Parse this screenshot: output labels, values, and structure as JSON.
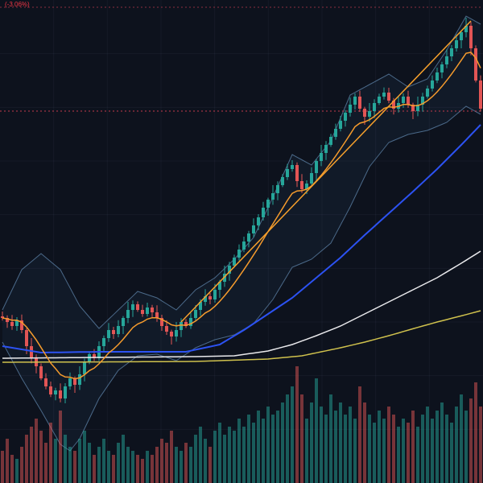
{
  "chart_data": {
    "type": "candlestick",
    "title": "",
    "xlabel": "",
    "ylabel": "",
    "ylim": [
      90,
      240
    ],
    "x_count": 100,
    "grid": {
      "v_divisions": 9,
      "h_divisions": 9,
      "visible": true
    },
    "legend": {
      "change_text": "(-3.06%)"
    },
    "closes": [
      141.25,
      140,
      138.75,
      140.5,
      137.5,
      132.5,
      128.75,
      126.25,
      122.5,
      120,
      117.5,
      118.75,
      116.25,
      120,
      122.5,
      120.5,
      123.75,
      127.5,
      130,
      128.75,
      132.5,
      135,
      137.5,
      136.25,
      138.75,
      141.25,
      143.75,
      145.5,
      143.75,
      142.5,
      144.5,
      143,
      141.25,
      138.75,
      137,
      135.5,
      137.5,
      140,
      138.75,
      141.25,
      143.75,
      146.25,
      148,
      147,
      150,
      152.5,
      155,
      157.5,
      160,
      162.5,
      165,
      167.5,
      170,
      172.5,
      175.5,
      178,
      180,
      182.5,
      185,
      187.5,
      188.75,
      183.75,
      181.25,
      183,
      186.25,
      190,
      192.5,
      195,
      197.5,
      200,
      202.5,
      205,
      207.5,
      210,
      206.25,
      203.75,
      205.5,
      208,
      210,
      211.25,
      208.75,
      206.25,
      208,
      210,
      207.5,
      205.5,
      207.5,
      210,
      212.5,
      215,
      217.5,
      220,
      222.5,
      225,
      227.5,
      230,
      232,
      225,
      215,
      206.25
    ],
    "volumes": [
      40,
      55,
      35,
      30,
      45,
      60,
      70,
      80,
      65,
      50,
      75,
      55,
      90,
      60,
      45,
      40,
      55,
      65,
      50,
      35,
      45,
      55,
      40,
      35,
      50,
      60,
      45,
      40,
      35,
      30,
      40,
      35,
      45,
      55,
      50,
      65,
      45,
      40,
      50,
      45,
      60,
      70,
      55,
      45,
      65,
      75,
      60,
      70,
      65,
      80,
      70,
      85,
      75,
      90,
      80,
      95,
      85,
      90,
      100,
      110,
      120,
      145,
      110,
      80,
      100,
      130,
      95,
      85,
      110,
      90,
      100,
      85,
      95,
      80,
      120,
      100,
      85,
      75,
      90,
      80,
      95,
      85,
      70,
      80,
      75,
      90,
      70,
      85,
      95,
      80,
      90,
      100,
      85,
      75,
      95,
      110,
      90,
      105,
      125,
      95
    ],
    "wick_pattern": [
      1.5,
      0.8,
      2.2,
      1.0,
      1.8,
      0.6,
      2.5,
      1.2,
      0.9,
      1.6
    ],
    "overlays": {
      "bollinger": {
        "upper_anchors": [
          [
            0,
            143.75
          ],
          [
            4,
            156.25
          ],
          [
            8,
            161.25
          ],
          [
            12,
            156.25
          ],
          [
            16,
            145
          ],
          [
            20,
            138
          ],
          [
            24,
            143.75
          ],
          [
            28,
            149.5
          ],
          [
            32,
            147.5
          ],
          [
            36,
            143.75
          ],
          [
            40,
            150
          ],
          [
            44,
            153.75
          ],
          [
            48,
            159.5
          ],
          [
            52,
            166.25
          ],
          [
            56,
            178.75
          ],
          [
            60,
            192
          ],
          [
            64,
            188.75
          ],
          [
            68,
            196.25
          ],
          [
            72,
            210.5
          ],
          [
            76,
            213.75
          ],
          [
            80,
            217
          ],
          [
            84,
            213
          ],
          [
            88,
            215.5
          ],
          [
            92,
            224.5
          ],
          [
            96,
            235
          ],
          [
            99,
            232.5
          ]
        ],
        "lower_anchors": [
          [
            0,
            133.75
          ],
          [
            4,
            122.5
          ],
          [
            8,
            112.5
          ],
          [
            12,
            102
          ],
          [
            14,
            100
          ],
          [
            16,
            103.75
          ],
          [
            20,
            116.25
          ],
          [
            24,
            125
          ],
          [
            28,
            129.5
          ],
          [
            32,
            130
          ],
          [
            36,
            128
          ],
          [
            40,
            132
          ],
          [
            44,
            134.5
          ],
          [
            48,
            136
          ],
          [
            52,
            139.5
          ],
          [
            56,
            147
          ],
          [
            60,
            157
          ],
          [
            64,
            159.5
          ],
          [
            68,
            164.5
          ],
          [
            72,
            175.75
          ],
          [
            76,
            188.25
          ],
          [
            80,
            195.75
          ],
          [
            84,
            198.25
          ],
          [
            88,
            199.5
          ],
          [
            92,
            202
          ],
          [
            96,
            207
          ],
          [
            99,
            204.5
          ]
        ]
      },
      "orange_ema": {
        "period": 9
      },
      "ma_blue_anchors": [
        [
          0,
          132.5
        ],
        [
          8,
          130.5
        ],
        [
          20,
          130.75
        ],
        [
          38,
          130.75
        ],
        [
          45,
          133
        ],
        [
          50,
          137.5
        ],
        [
          55,
          142.5
        ],
        [
          60,
          147.5
        ],
        [
          65,
          153.75
        ],
        [
          70,
          160
        ],
        [
          75,
          167
        ],
        [
          80,
          173.75
        ],
        [
          85,
          180.5
        ],
        [
          90,
          187.5
        ],
        [
          95,
          195
        ],
        [
          99,
          201.25
        ]
      ],
      "ma_white_anchors": [
        [
          0,
          128.75
        ],
        [
          20,
          129
        ],
        [
          40,
          129.25
        ],
        [
          48,
          129.5
        ],
        [
          55,
          131
        ],
        [
          60,
          133
        ],
        [
          65,
          135.75
        ],
        [
          70,
          138.75
        ],
        [
          75,
          142.5
        ],
        [
          80,
          146.25
        ],
        [
          85,
          150
        ],
        [
          90,
          153.75
        ],
        [
          95,
          158.25
        ],
        [
          99,
          162
        ]
      ],
      "ma_yellow_anchors": [
        [
          0,
          127.5
        ],
        [
          20,
          127.6
        ],
        [
          40,
          127.75
        ],
        [
          55,
          128.5
        ],
        [
          62,
          129.5
        ],
        [
          70,
          132
        ],
        [
          75,
          133.75
        ],
        [
          80,
          135.75
        ],
        [
          85,
          137.9
        ],
        [
          90,
          140
        ],
        [
          95,
          141.9
        ],
        [
          99,
          143.5
        ]
      ]
    },
    "trendline": {
      "from": [
        37,
        140
      ],
      "to": [
        97,
        233.5
      ]
    },
    "hlines": [
      {
        "price": 205.5,
        "color": "#c2394d"
      },
      {
        "price": 237.75,
        "color": "#8a2f3f"
      }
    ],
    "colors": {
      "background": "#0d121d",
      "grid": "rgba(145,165,210,0.06)",
      "up": "#26a69a",
      "down": "#e25555",
      "volume_opacity": 0.5,
      "band_stroke": "rgba(125,175,222,0.55)",
      "band_fill": "rgba(72,128,184,0.08)",
      "ma_orange": "#f59b2d",
      "ma_blue": "#2c52f2",
      "ma_white": "#e9e9ec",
      "ma_yellow": "#cfc14d",
      "trendline": "#f6a02c",
      "legend_red": "#f23645"
    }
  }
}
